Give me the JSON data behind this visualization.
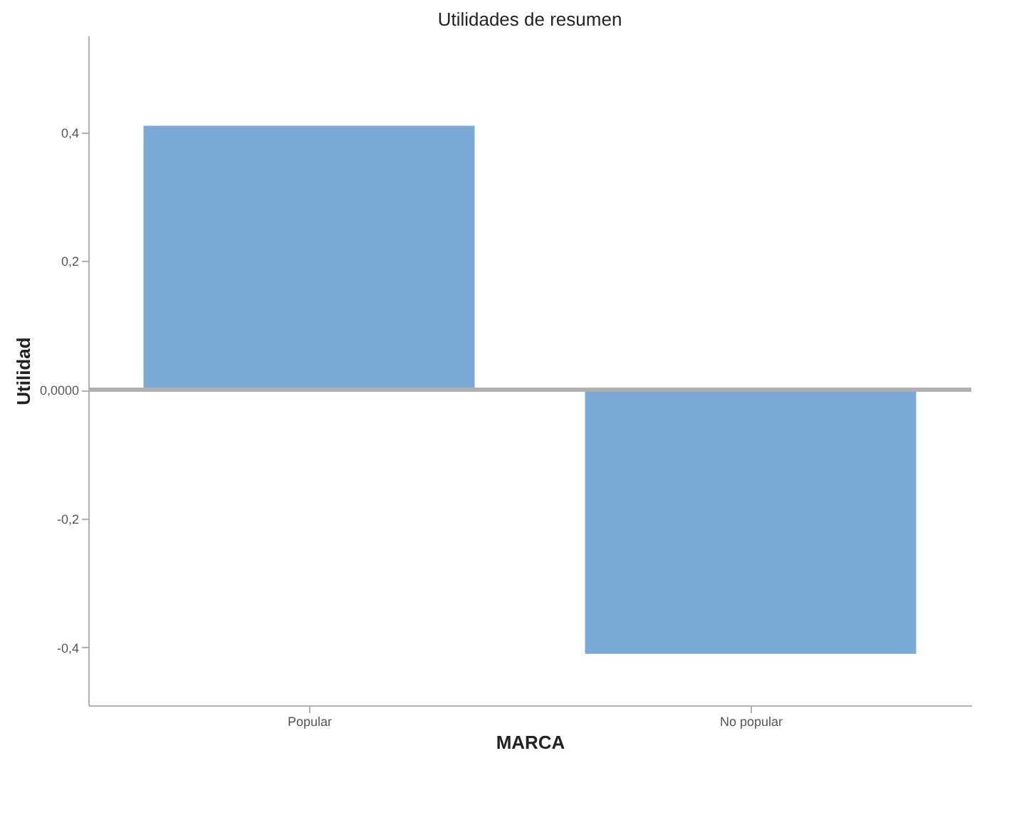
{
  "chart_data": {
    "type": "bar",
    "title": "Utilidades de resumen",
    "xlabel": "MARCA",
    "ylabel": "Utilidad",
    "categories": [
      "Popular",
      "No popular"
    ],
    "values": [
      0.41,
      -0.41
    ],
    "color": "#7aa9d6",
    "ylim": [
      -0.49,
      0.55
    ],
    "yticks": [
      {
        "value": -0.4,
        "label": "-0,4"
      },
      {
        "value": -0.2,
        "label": "-0,2"
      },
      {
        "value": 0,
        "label": "0,0000"
      },
      {
        "value": 0.2,
        "label": "0,2"
      },
      {
        "value": 0.4,
        "label": "0,4"
      }
    ],
    "ref_lines": [
      {
        "axis": "y",
        "value": 0,
        "color": "#b0b0b0"
      }
    ],
    "grid": false
  }
}
